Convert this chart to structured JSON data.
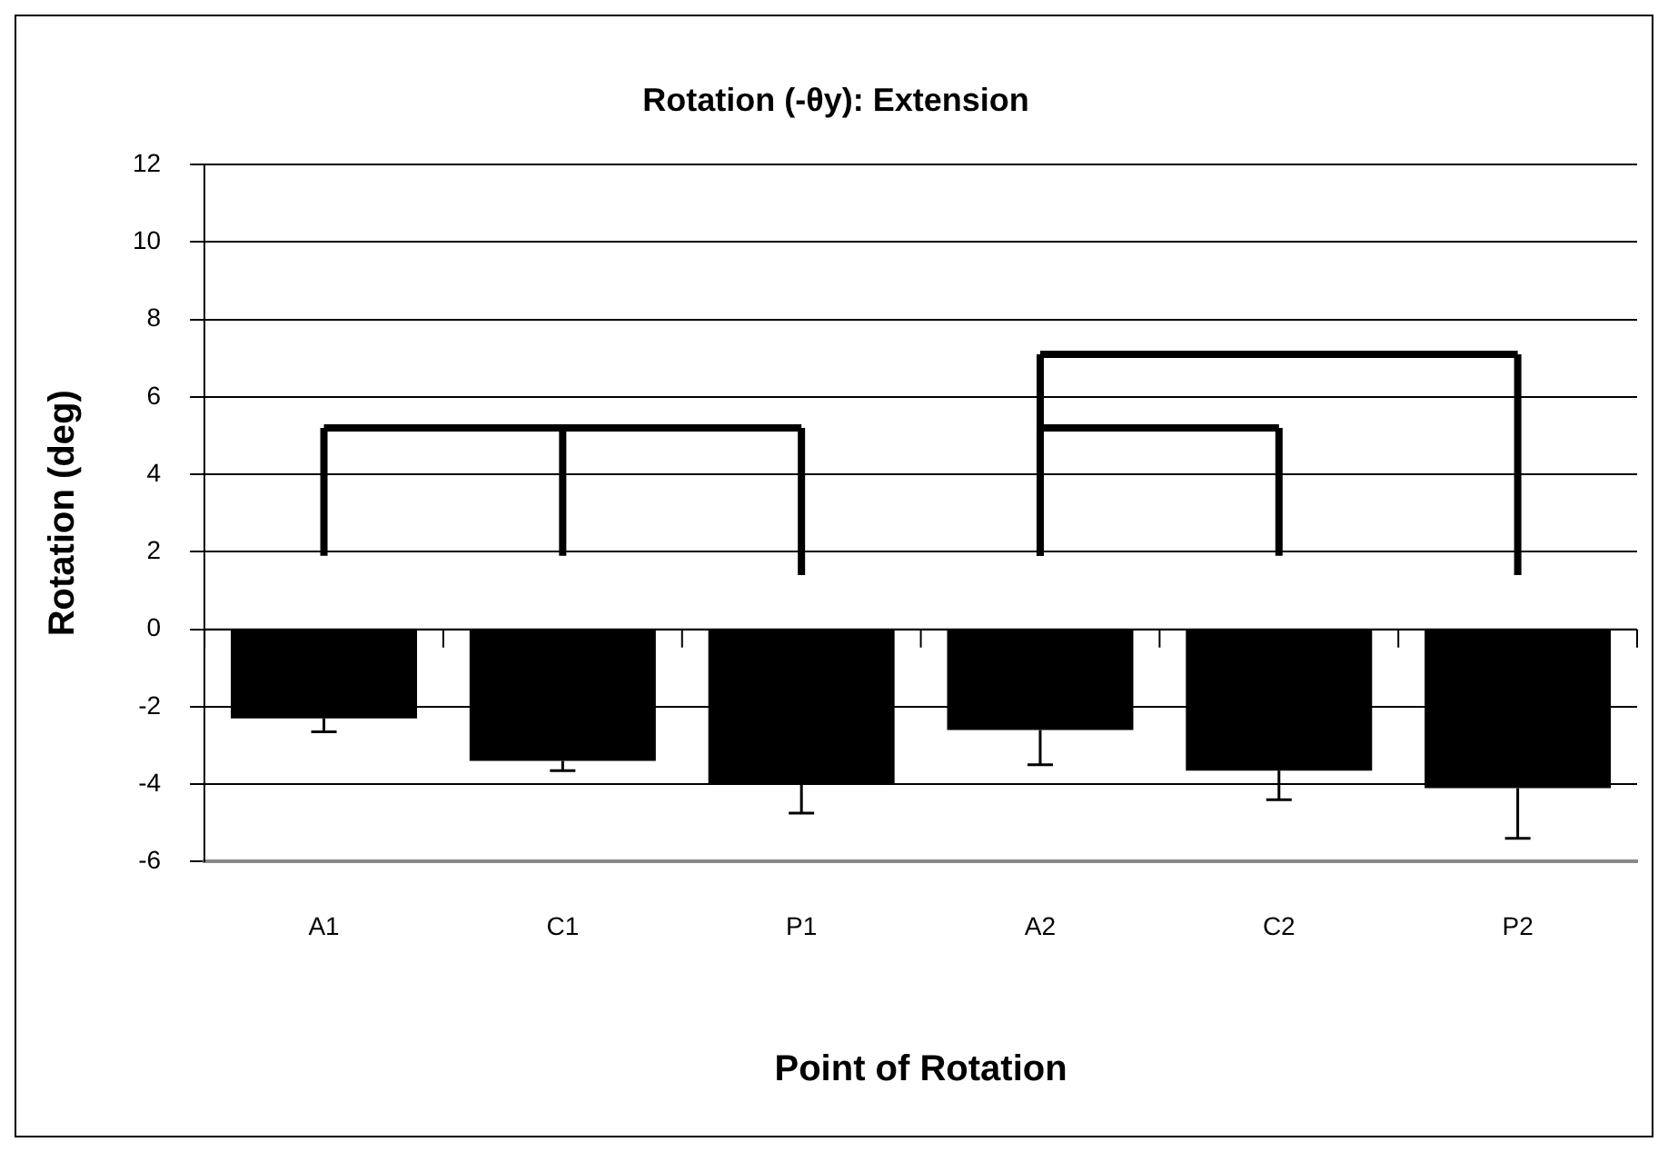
{
  "chart_data": {
    "type": "bar",
    "title": "Rotation (-θy): Extension",
    "xlabel": "Point of Rotation",
    "ylabel": "Rotation (deg)",
    "categories": [
      "A1",
      "C1",
      "P1",
      "A2",
      "C2",
      "P2"
    ],
    "series": [
      {
        "color": "#000000",
        "values": [
          -2.3,
          -3.4,
          -4.0,
          -2.6,
          -3.65,
          -4.1
        ],
        "errors": [
          [
            -2.65,
            -2.3
          ],
          [
            -3.65,
            -3.4
          ],
          [
            -4.75,
            -4.0
          ],
          [
            -3.5,
            -2.6
          ],
          [
            -4.4,
            -3.65
          ],
          [
            -5.4,
            -4.1
          ]
        ]
      }
    ],
    "ylim": [
      -6,
      12
    ],
    "yticks": [
      -6,
      -4,
      -2,
      0,
      2,
      4,
      6,
      8,
      10,
      12
    ],
    "grid": "y",
    "legend": false
  }
}
